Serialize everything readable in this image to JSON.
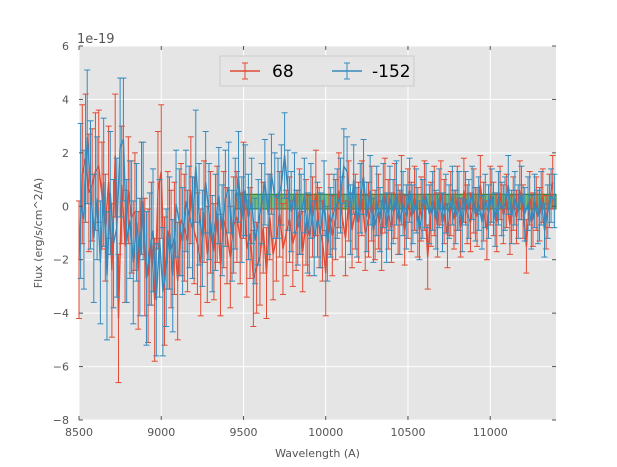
{
  "chart_data": {
    "type": "line",
    "title": "",
    "xlabel": "Wavelength (A)",
    "ylabel": "Flux (erg/s/cm^2/A)",
    "y_offset_text": "1e-19",
    "xlim": [
      8500,
      11400
    ],
    "ylim": [
      -8,
      6
    ],
    "xticks": [
      8500,
      9000,
      9500,
      10000,
      10500,
      11000
    ],
    "xtick_labels": [
      "8500",
      "9000",
      "9500",
      "10000",
      "10500",
      "11000"
    ],
    "yticks": [
      -8,
      -6,
      -4,
      -2,
      0,
      2,
      4,
      6
    ],
    "ytick_labels": [
      "−8",
      "−6",
      "−4",
      "−2",
      "0",
      "2",
      "4",
      "6"
    ],
    "grid": true,
    "legend_position": "upper-center",
    "highlight_band": {
      "x_range": [
        9450,
        11400
      ],
      "y_range": [
        -0.1,
        0.45
      ],
      "color": "#2ca02c"
    },
    "series": [
      {
        "name": "68",
        "color": "#e24a33",
        "x": [
          8500,
          8520,
          8540,
          8560,
          8580,
          8600,
          8620,
          8640,
          8660,
          8680,
          8700,
          8720,
          8740,
          8760,
          8780,
          8800,
          8820,
          8840,
          8860,
          8880,
          8900,
          8920,
          8940,
          8960,
          8980,
          9000,
          9020,
          9040,
          9060,
          9080,
          9100,
          9120,
          9140,
          9160,
          9180,
          9200,
          9220,
          9240,
          9260,
          9280,
          9300,
          9320,
          9340,
          9360,
          9380,
          9400,
          9420,
          9440,
          9460,
          9480,
          9500,
          9520,
          9540,
          9560,
          9580,
          9600,
          9620,
          9640,
          9660,
          9680,
          9700,
          9720,
          9740,
          9760,
          9780,
          9800,
          9820,
          9840,
          9860,
          9880,
          9900,
          9920,
          9940,
          9960,
          9980,
          10000,
          10020,
          10040,
          10060,
          10080,
          10100,
          10120,
          10140,
          10160,
          10180,
          10200,
          10220,
          10240,
          10260,
          10280,
          10300,
          10320,
          10340,
          10360,
          10380,
          10400,
          10420,
          10440,
          10460,
          10480,
          10500,
          10520,
          10540,
          10560,
          10580,
          10600,
          10620,
          10640,
          10660,
          10680,
          10700,
          10720,
          10740,
          10760,
          10780,
          10800,
          10820,
          10840,
          10860,
          10880,
          10900,
          10920,
          10940,
          10960,
          10980,
          11000,
          11020,
          11040,
          11060,
          11080,
          11100,
          11120,
          11140,
          11160,
          11180,
          11200,
          11220,
          11240,
          11260,
          11280,
          11300,
          11320,
          11340,
          11360,
          11380
        ],
        "y": [
          -2.0,
          1.2,
          1.8,
          0.5,
          0.8,
          1.3,
          1.5,
          0.4,
          -0.8,
          0.9,
          -2.4,
          1.9,
          -4.2,
          0.8,
          -1.5,
          0.6,
          -0.4,
          -0.2,
          -2.4,
          0.3,
          -1.9,
          -2.6,
          -1.4,
          -3.5,
          0.6,
          1.3,
          -2.8,
          -0.9,
          -1.6,
          -1.2,
          -2.8,
          -0.5,
          -0.8,
          -1.3,
          0.6,
          -0.9,
          -1.4,
          -2.1,
          -0.2,
          -1.8,
          -0.6,
          -1.7,
          -0.3,
          -2.2,
          -0.5,
          -1.1,
          -1.9,
          -0.7,
          -0.4,
          -1.2,
          0.6,
          -1.6,
          -1.0,
          -2.7,
          -2.3,
          -1.9,
          -0.8,
          -2.5,
          -0.4,
          -1.8,
          -1.2,
          -0.3,
          -1.6,
          -1.0,
          -0.5,
          -1.4,
          -0.9,
          -0.2,
          -1.7,
          -0.6,
          -1.1,
          -0.4,
          0.5,
          -0.8,
          -1.3,
          -2.5,
          -0.3,
          -1.1,
          -0.5,
          0.6,
          -0.4,
          -1.2,
          0.2,
          -0.9,
          -0.2,
          -0.6,
          0.3,
          -1.0,
          -0.5,
          0.1,
          -0.7,
          -0.2,
          -1.1,
          0.4,
          -0.3,
          -0.8,
          0.2,
          -0.5,
          0.6,
          -0.9,
          0.1,
          -0.4,
          0.3,
          -0.6,
          -0.1,
          0.4,
          -1.9,
          -0.3,
          0.2,
          -0.7,
          0.5,
          -0.2,
          -1.1,
          0.1,
          -0.5,
          0.3,
          -0.8,
          0.6,
          -0.3,
          -0.6,
          0.2,
          -0.4,
          0.8,
          -0.2,
          -0.9,
          0.4,
          -0.1,
          -0.6,
          0.5,
          -0.3,
          0.2,
          -0.7,
          0.1,
          -0.4,
          0.6,
          -0.2,
          -1.5,
          0.3,
          -0.5,
          0.1,
          -0.3,
          0.4,
          -0.6,
          0.2,
          0.9
        ],
        "err": [
          2.2,
          2.6,
          2.4,
          2.2,
          2.1,
          2.2,
          2.1,
          2.0,
          2.0,
          2.1,
          2.5,
          2.3,
          2.4,
          2.2,
          2.1,
          2.0,
          2.1,
          2.2,
          2.2,
          2.1,
          2.2,
          2.5,
          2.3,
          2.3,
          2.2,
          2.5,
          2.4,
          2.2,
          2.2,
          2.1,
          2.2,
          2.1,
          2.0,
          1.9,
          2.0,
          2.0,
          1.9,
          2.0,
          1.9,
          1.8,
          1.9,
          1.8,
          1.8,
          1.9,
          1.8,
          1.8,
          1.9,
          1.8,
          1.7,
          1.7,
          1.8,
          1.8,
          1.7,
          1.8,
          1.7,
          1.8,
          1.7,
          1.7,
          1.6,
          1.7,
          1.6,
          1.6,
          1.7,
          1.6,
          1.6,
          1.6,
          1.5,
          1.6,
          1.5,
          1.6,
          1.5,
          1.5,
          1.6,
          1.5,
          1.5,
          1.6,
          1.5,
          1.5,
          1.5,
          1.4,
          1.5,
          1.4,
          1.5,
          1.4,
          1.4,
          1.5,
          1.4,
          1.4,
          1.4,
          1.4,
          1.3,
          1.4,
          1.3,
          1.4,
          1.3,
          1.3,
          1.4,
          1.3,
          1.3,
          1.3,
          1.3,
          1.3,
          1.2,
          1.3,
          1.2,
          1.3,
          1.2,
          1.2,
          1.3,
          1.2,
          1.2,
          1.2,
          1.2,
          1.2,
          1.1,
          1.2,
          1.1,
          1.2,
          1.1,
          1.1,
          1.2,
          1.1,
          1.1,
          1.1,
          1.1,
          1.1,
          1.0,
          1.1,
          1.0,
          1.1,
          1.0,
          1.1,
          1.0,
          1.0,
          1.1,
          1.0,
          1.0,
          1.0,
          1.0,
          1.0,
          1.0,
          1.0,
          1.0,
          1.0,
          1.0
        ]
      },
      {
        "name": "-152",
        "color": "#348abd",
        "x": [
          8510,
          8530,
          8550,
          8570,
          8590,
          8610,
          8630,
          8650,
          8670,
          8690,
          8710,
          8730,
          8750,
          8770,
          8790,
          8810,
          8830,
          8850,
          8870,
          8890,
          8910,
          8930,
          8950,
          8970,
          8990,
          9010,
          9030,
          9050,
          9070,
          9090,
          9110,
          9130,
          9150,
          9170,
          9190,
          9210,
          9230,
          9250,
          9270,
          9290,
          9310,
          9330,
          9350,
          9370,
          9390,
          9410,
          9430,
          9450,
          9470,
          9490,
          9510,
          9530,
          9550,
          9570,
          9590,
          9610,
          9630,
          9650,
          9670,
          9690,
          9710,
          9730,
          9750,
          9770,
          9790,
          9810,
          9830,
          9850,
          9870,
          9890,
          9910,
          9930,
          9950,
          9970,
          9990,
          10010,
          10030,
          10050,
          10070,
          10090,
          10110,
          10130,
          10150,
          10170,
          10190,
          10210,
          10230,
          10250,
          10270,
          10290,
          10310,
          10330,
          10350,
          10370,
          10390,
          10410,
          10430,
          10450,
          10470,
          10490,
          10510,
          10530,
          10550,
          10570,
          10590,
          10610,
          10630,
          10650,
          10670,
          10690,
          10710,
          10730,
          10750,
          10770,
          10790,
          10810,
          10830,
          10850,
          10870,
          10890,
          10910,
          10930,
          10950,
          10970,
          10990,
          11010,
          11030,
          11050,
          11070,
          11090,
          11110,
          11130,
          11150,
          11170,
          11190,
          11210,
          11230,
          11250,
          11270,
          11290,
          11310,
          11330,
          11350,
          11370,
          11390
        ],
        "y": [
          0.2,
          -0.5,
          2.6,
          0.8,
          -1.2,
          0.3,
          -2.1,
          0.9,
          -2.6,
          0.5,
          -1.4,
          -0.8,
          2.2,
          2.5,
          -1.3,
          -0.5,
          -2.1,
          -0.6,
          -1.9,
          0.2,
          -2.7,
          -1.6,
          -0.9,
          -3.5,
          -1.2,
          -3.2,
          -2.3,
          -1.0,
          -2.6,
          0.1,
          -0.6,
          -1.3,
          0.2,
          -0.4,
          -0.8,
          1.5,
          -0.3,
          -1.2,
          0.9,
          -0.2,
          -1.4,
          -0.6,
          0.4,
          -0.9,
          0.3,
          0.7,
          -1.1,
          0.1,
          1.1,
          -0.5,
          0.6,
          -0.4,
          0.2,
          -1.3,
          -0.6,
          0.1,
          0.9,
          -0.3,
          1.2,
          0.4,
          0.3,
          0.8,
          1.9,
          0.6,
          -0.2,
          0.5,
          -0.8,
          -0.3,
          0.4,
          -1.0,
          0.2,
          -1.2,
          -0.5,
          -0.9,
          0.3,
          -1.4,
          -0.6,
          -0.2,
          0.1,
          0.4,
          1.5,
          1.3,
          -0.5,
          1.0,
          -0.6,
          0.3,
          1.1,
          -0.4,
          0.6,
          -0.9,
          0.2,
          -0.5,
          0.4,
          -0.8,
          0.3,
          -0.2,
          0.5,
          -0.6,
          0.1,
          -0.4,
          0.6,
          -0.3,
          0.2,
          -0.9,
          -0.1,
          0.4,
          -0.3,
          0.2,
          -0.5,
          0.3,
          -0.6,
          0.1,
          -0.2,
          0.4,
          -0.4,
          0.2,
          -0.7,
          0.3,
          -0.1,
          0.5,
          -0.3,
          0.1,
          -0.6,
          0.2,
          -0.2,
          0.4,
          -0.5,
          0.3,
          -0.1,
          0.1,
          0.8,
          -0.4,
          0.3,
          -0.2,
          0.5,
          -0.3,
          0.1,
          -0.6,
          0.2,
          -0.4,
          0.3,
          -0.9,
          -0.2,
          0.4,
          0.2
        ],
        "err": [
          2.9,
          2.6,
          2.5,
          2.4,
          2.4,
          2.3,
          2.3,
          2.4,
          2.4,
          2.3,
          2.4,
          2.6,
          2.6,
          2.3,
          2.3,
          2.2,
          2.3,
          2.2,
          2.2,
          2.2,
          2.5,
          2.1,
          2.3,
          2.1,
          2.2,
          2.4,
          2.2,
          2.1,
          2.1,
          2.0,
          2.0,
          2.0,
          1.9,
          1.9,
          1.9,
          2.1,
          1.9,
          1.8,
          1.9,
          1.8,
          1.8,
          1.8,
          1.8,
          1.7,
          1.8,
          1.7,
          1.7,
          1.7,
          1.7,
          1.6,
          1.7,
          1.6,
          1.6,
          1.6,
          1.6,
          1.5,
          1.6,
          1.5,
          1.5,
          1.6,
          1.5,
          1.5,
          1.6,
          1.5,
          1.5,
          1.5,
          1.4,
          1.5,
          1.4,
          1.5,
          1.4,
          1.4,
          1.4,
          1.4,
          1.4,
          1.4,
          1.3,
          1.4,
          1.3,
          1.4,
          1.4,
          1.3,
          1.3,
          1.3,
          1.3,
          1.3,
          1.4,
          1.3,
          1.3,
          1.2,
          1.3,
          1.2,
          1.2,
          1.3,
          1.2,
          1.2,
          1.2,
          1.2,
          1.2,
          1.2,
          1.2,
          1.1,
          1.2,
          1.1,
          1.1,
          1.2,
          1.1,
          1.1,
          1.1,
          1.1,
          1.1,
          1.1,
          1.0,
          1.1,
          1.0,
          1.1,
          1.0,
          1.0,
          1.1,
          1.0,
          1.0,
          1.0,
          1.0,
          1.0,
          1.0,
          1.0,
          1.0,
          1.0,
          1.0,
          1.0,
          1.1,
          1.0,
          1.0,
          1.0,
          1.0,
          1.0,
          1.0,
          1.0,
          1.0,
          1.0,
          1.0,
          1.0,
          1.0,
          1.0,
          1.0
        ]
      }
    ]
  }
}
